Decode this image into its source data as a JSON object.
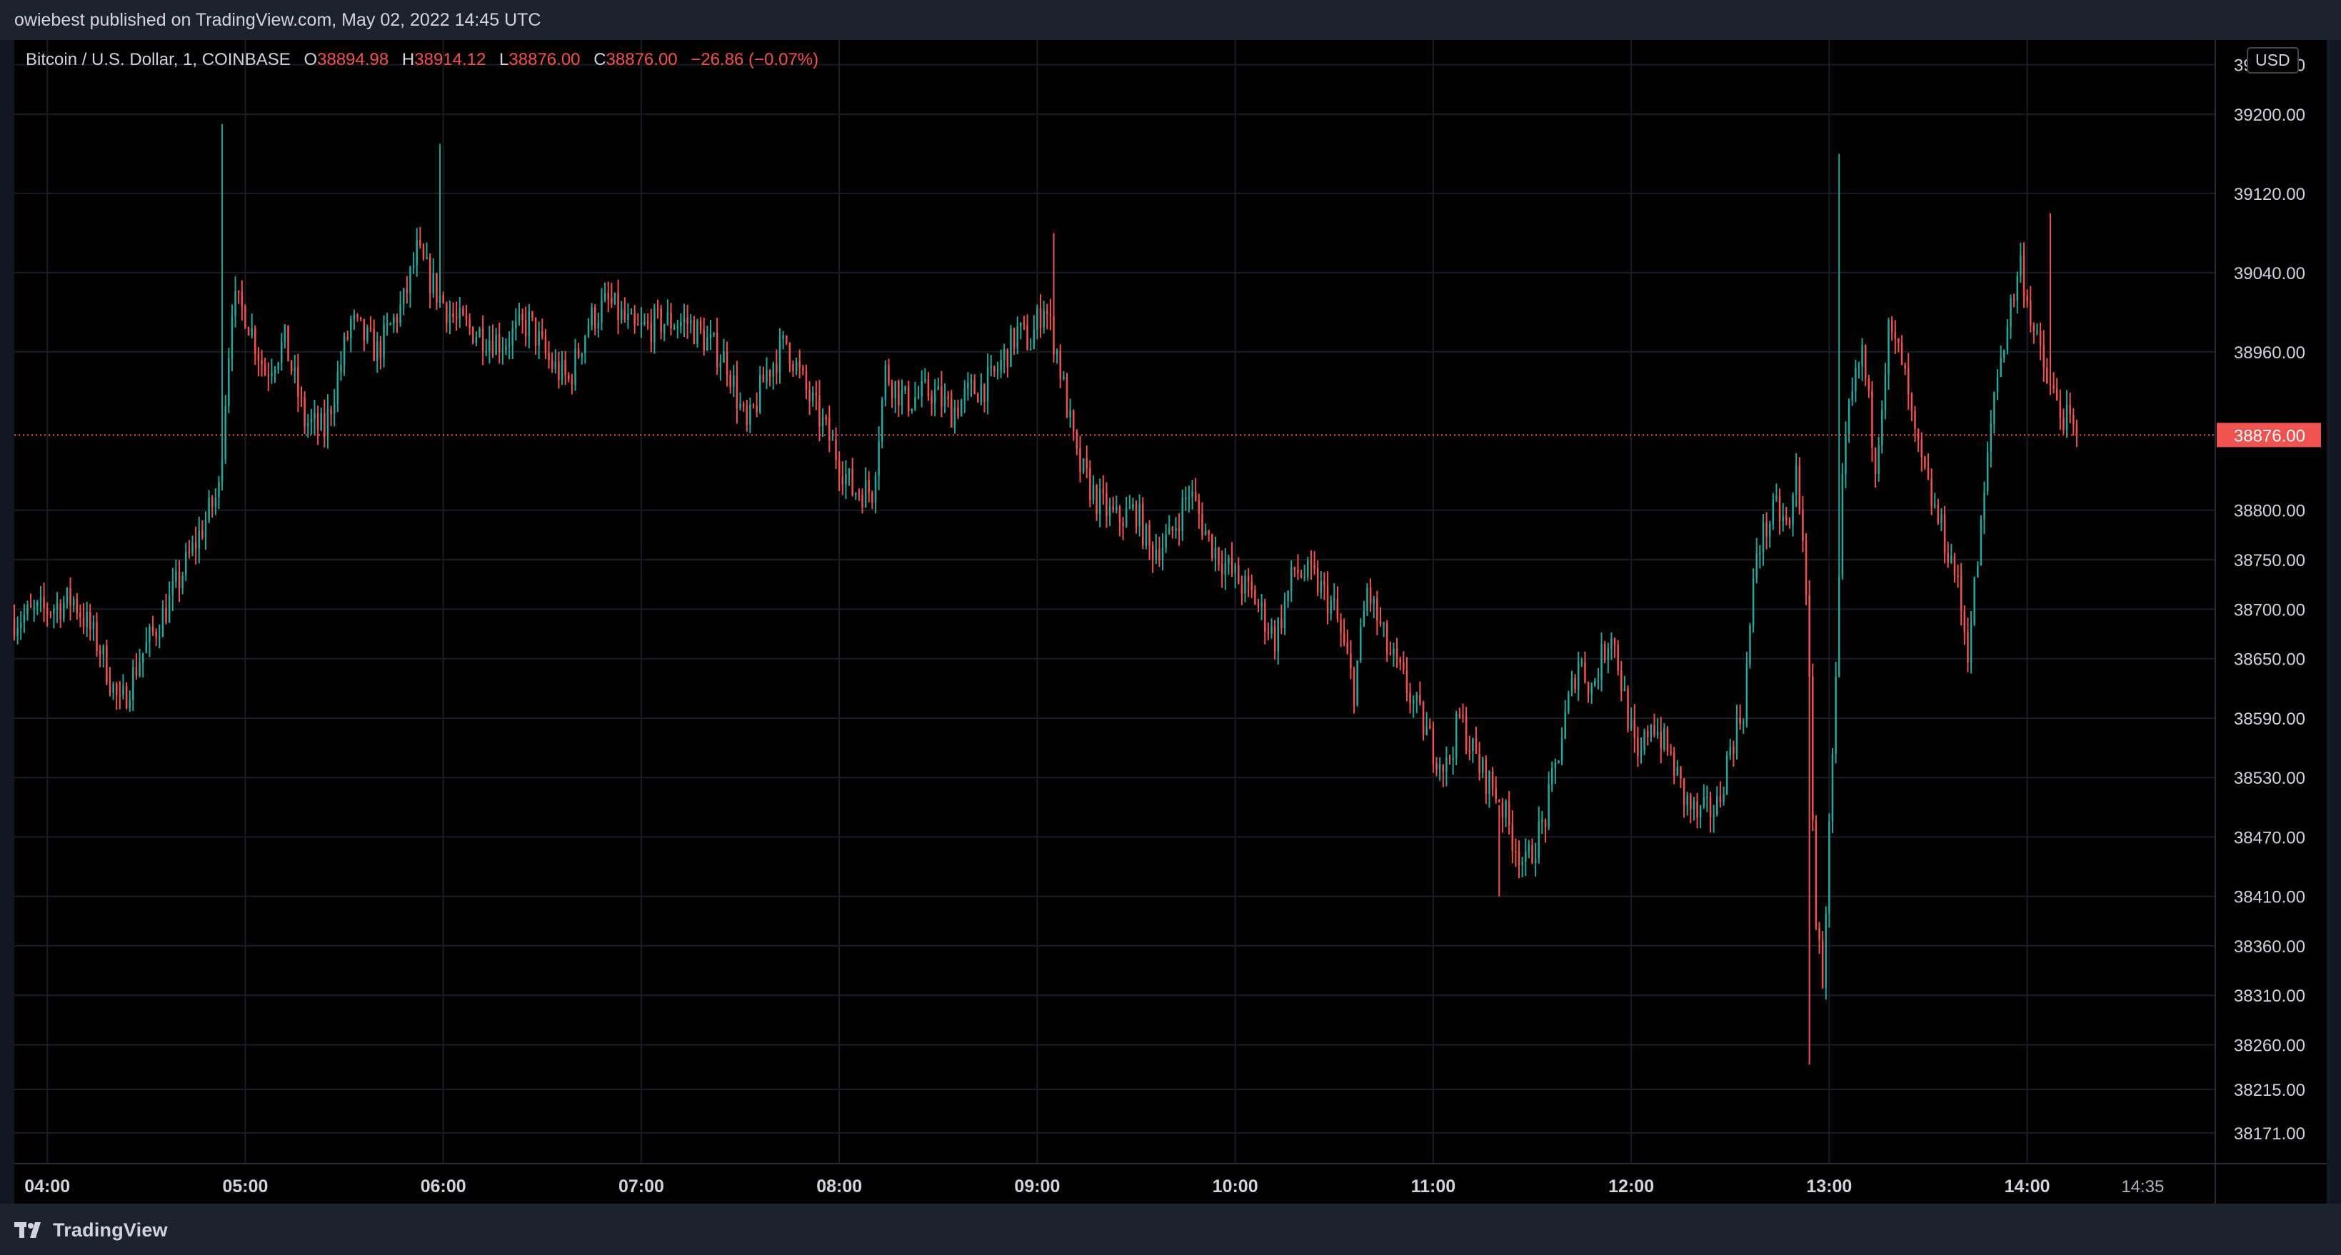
{
  "header": {
    "published": "owiebest published on TradingView.com, May 02, 2022 14:45 UTC"
  },
  "legend": {
    "symbol": "Bitcoin / U.S. Dollar, 1, COINBASE",
    "open_label": "O",
    "open": "38894.98",
    "high_label": "H",
    "high": "38914.12",
    "low_label": "L",
    "low": "38876.00",
    "close_label": "C",
    "close": "38876.00",
    "change": "−26.86 (−0.07%)"
  },
  "currency": "USD",
  "footer": {
    "brand": "TradingView",
    "logo_icon": "tradingview-logo-icon"
  },
  "colors": {
    "up": "#26a69a",
    "down": "#ef5350",
    "background": "#000000",
    "frame": "#131722",
    "grid": "#1a1d24",
    "text": "#d1d4dc"
  },
  "chart_data": {
    "type": "candlestick",
    "title": "Bitcoin / U.S. Dollar, 1, COINBASE",
    "interval": "1 minute",
    "y_ticks": [
      39250,
      39200,
      39120,
      39040,
      38960,
      38800,
      38750,
      38700,
      38650,
      38590,
      38530,
      38470,
      38410,
      38360,
      38310,
      38260,
      38215,
      38171
    ],
    "y_tick_labels": [
      "39250.00",
      "39200.00",
      "39120.00",
      "39040.00",
      "38960.00",
      "38800.00",
      "38750.00",
      "38700.00",
      "38650.00",
      "38590.00",
      "38530.00",
      "38470.00",
      "38410.00",
      "38360.00",
      "38310.00",
      "38260.00",
      "38215.00",
      "38171.00"
    ],
    "x_tick_labels": [
      "04:00",
      "05:00",
      "06:00",
      "07:00",
      "08:00",
      "09:00",
      "10:00",
      "11:00",
      "12:00",
      "13:00",
      "14:00"
    ],
    "x_tick_minutes": [
      240,
      300,
      360,
      420,
      480,
      540,
      600,
      660,
      720,
      780,
      840
    ],
    "current_time_label": "14:35",
    "current_time_minute": 875,
    "last_price": 38876.0,
    "last_price_label": "38876.00",
    "price_line": "dotted",
    "ylim": [
      38140,
      39275
    ],
    "xlim_minutes": [
      230,
      897
    ],
    "grid": true,
    "close_path_keypoints": [
      [
        230,
        38690
      ],
      [
        240,
        38700
      ],
      [
        248,
        38710
      ],
      [
        256,
        38660
      ],
      [
        262,
        38600
      ],
      [
        268,
        38650
      ],
      [
        276,
        38700
      ],
      [
        284,
        38760
      ],
      [
        292,
        38820
      ],
      [
        296,
        39010
      ],
      [
        300,
        39000
      ],
      [
        306,
        38940
      ],
      [
        312,
        38970
      ],
      [
        318,
        38890
      ],
      [
        324,
        38880
      ],
      [
        332,
        38990
      ],
      [
        340,
        38960
      ],
      [
        348,
        39010
      ],
      [
        352,
        39060
      ],
      [
        358,
        39020
      ],
      [
        364,
        38990
      ],
      [
        370,
        38980
      ],
      [
        378,
        38970
      ],
      [
        386,
        38990
      ],
      [
        392,
        38950
      ],
      [
        398,
        38930
      ],
      [
        404,
        38990
      ],
      [
        410,
        39010
      ],
      [
        418,
        38980
      ],
      [
        426,
        38990
      ],
      [
        434,
        38990
      ],
      [
        446,
        38950
      ],
      [
        452,
        38880
      ],
      [
        458,
        38940
      ],
      [
        464,
        38970
      ],
      [
        470,
        38920
      ],
      [
        476,
        38880
      ],
      [
        484,
        38820
      ],
      [
        490,
        38820
      ],
      [
        494,
        38940
      ],
      [
        500,
        38910
      ],
      [
        508,
        38920
      ],
      [
        514,
        38900
      ],
      [
        520,
        38920
      ],
      [
        526,
        38930
      ],
      [
        534,
        38980
      ],
      [
        538,
        38970
      ],
      [
        542,
        39010
      ],
      [
        546,
        38960
      ],
      [
        552,
        38850
      ],
      [
        558,
        38810
      ],
      [
        564,
        38790
      ],
      [
        570,
        38800
      ],
      [
        574,
        38760
      ],
      [
        580,
        38770
      ],
      [
        586,
        38820
      ],
      [
        592,
        38770
      ],
      [
        598,
        38740
      ],
      [
        606,
        38710
      ],
      [
        612,
        38670
      ],
      [
        618,
        38740
      ],
      [
        624,
        38730
      ],
      [
        630,
        38700
      ],
      [
        636,
        38620
      ],
      [
        640,
        38720
      ],
      [
        646,
        38660
      ],
      [
        652,
        38620
      ],
      [
        660,
        38560
      ],
      [
        664,
        38540
      ],
      [
        668,
        38590
      ],
      [
        674,
        38540
      ],
      [
        680,
        38510
      ],
      [
        684,
        38470
      ],
      [
        688,
        38440
      ],
      [
        694,
        38490
      ],
      [
        700,
        38590
      ],
      [
        704,
        38650
      ],
      [
        708,
        38620
      ],
      [
        714,
        38680
      ],
      [
        718,
        38610
      ],
      [
        722,
        38540
      ],
      [
        726,
        38590
      ],
      [
        732,
        38550
      ],
      [
        736,
        38510
      ],
      [
        740,
        38490
      ],
      [
        746,
        38500
      ],
      [
        750,
        38560
      ],
      [
        754,
        38600
      ],
      [
        758,
        38760
      ],
      [
        762,
        38790
      ],
      [
        764,
        38800
      ],
      [
        768,
        38780
      ],
      [
        770,
        38840
      ],
      [
        772,
        38780
      ],
      [
        774,
        38620
      ],
      [
        776,
        38380
      ],
      [
        778,
        38330
      ],
      [
        782,
        38620
      ],
      [
        784,
        38820
      ],
      [
        786,
        38900
      ],
      [
        790,
        38960
      ],
      [
        794,
        38850
      ],
      [
        798,
        38980
      ],
      [
        802,
        38950
      ],
      [
        806,
        38870
      ],
      [
        810,
        38820
      ],
      [
        814,
        38780
      ],
      [
        818,
        38740
      ],
      [
        822,
        38660
      ],
      [
        826,
        38780
      ],
      [
        830,
        38920
      ],
      [
        834,
        38990
      ],
      [
        838,
        39050
      ],
      [
        842,
        38980
      ],
      [
        846,
        38930
      ],
      [
        850,
        38900
      ],
      [
        852,
        38890
      ],
      [
        855,
        38876
      ]
    ],
    "notable_wicks": [
      {
        "minute": 293,
        "high": 39190
      },
      {
        "minute": 359,
        "high": 39170
      },
      {
        "minute": 545,
        "high": 39080
      },
      {
        "minute": 680,
        "high": 38410
      },
      {
        "minute": 774,
        "low": 38240
      },
      {
        "minute": 783,
        "high": 39160
      },
      {
        "minute": 847,
        "high": 39100
      }
    ]
  }
}
